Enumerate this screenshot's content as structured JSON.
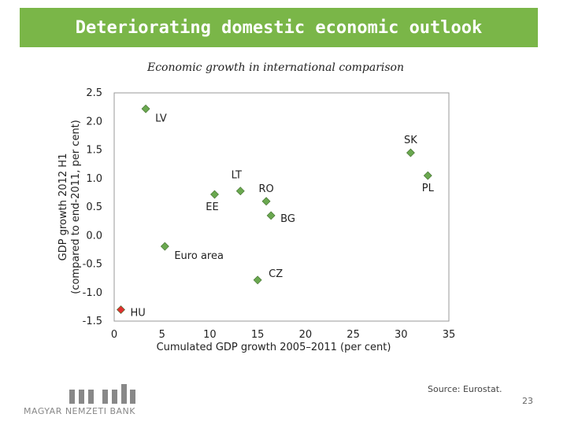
{
  "slide": {
    "title": "Deteriorating domestic economic outlook",
    "subtitle": "Economic growth in international comparison",
    "source": "Source: Eurostat.",
    "page_number": "23",
    "logo_text": "MAGYAR NEMZETI BANK",
    "colors": {
      "title_bar": "#7ab648",
      "point_default": "#6aa84f",
      "point_highlight": "#e03030"
    }
  },
  "chart_data": {
    "type": "scatter",
    "xlabel": "Cumulated GDP growth 2005–2011  (per cent)",
    "ylabel_lines": [
      "GDP growth 2012 H1",
      "(compared to end-2011, per cent)"
    ],
    "xlim": [
      0,
      35
    ],
    "ylim": [
      -1.5,
      2.5
    ],
    "x_ticks": [
      0,
      5,
      10,
      15,
      20,
      25,
      30,
      35
    ],
    "y_ticks": [
      2.5,
      2.0,
      1.5,
      1.0,
      0.5,
      0.0,
      -0.5,
      -1.0,
      -1.5
    ],
    "y_tick_labels": [
      "2.5",
      "2.0",
      "1.5",
      "1.0",
      "0.5",
      "0.0",
      "-0.5",
      "-1.0",
      "-1.5"
    ],
    "grid": false,
    "points": [
      {
        "label": "LV",
        "x": 3.3,
        "y": 2.22,
        "color": "#6aa84f",
        "label_pos": "below-right"
      },
      {
        "label": "SK",
        "x": 31.0,
        "y": 1.45,
        "color": "#6aa84f",
        "label_pos": "above"
      },
      {
        "label": "PL",
        "x": 32.8,
        "y": 1.05,
        "color": "#6aa84f",
        "label_pos": "below"
      },
      {
        "label": "LT",
        "x": 13.2,
        "y": 0.78,
        "color": "#6aa84f",
        "label_pos": "above-left"
      },
      {
        "label": "RO",
        "x": 15.9,
        "y": 0.6,
        "color": "#6aa84f",
        "label_pos": "above"
      },
      {
        "label": "EE",
        "x": 10.5,
        "y": 0.72,
        "color": "#6aa84f",
        "label_pos": "below-left"
      },
      {
        "label": "BG",
        "x": 16.4,
        "y": 0.35,
        "color": "#6aa84f",
        "label_pos": "right"
      },
      {
        "label": "Euro area",
        "x": 5.3,
        "y": -0.19,
        "color": "#6aa84f",
        "label_pos": "below-right"
      },
      {
        "label": "CZ",
        "x": 15.0,
        "y": -0.78,
        "color": "#6aa84f",
        "label_pos": "above-right"
      },
      {
        "label": "HU",
        "x": 0.7,
        "y": -1.3,
        "color": "#e03030",
        "label_pos": "right"
      }
    ]
  }
}
